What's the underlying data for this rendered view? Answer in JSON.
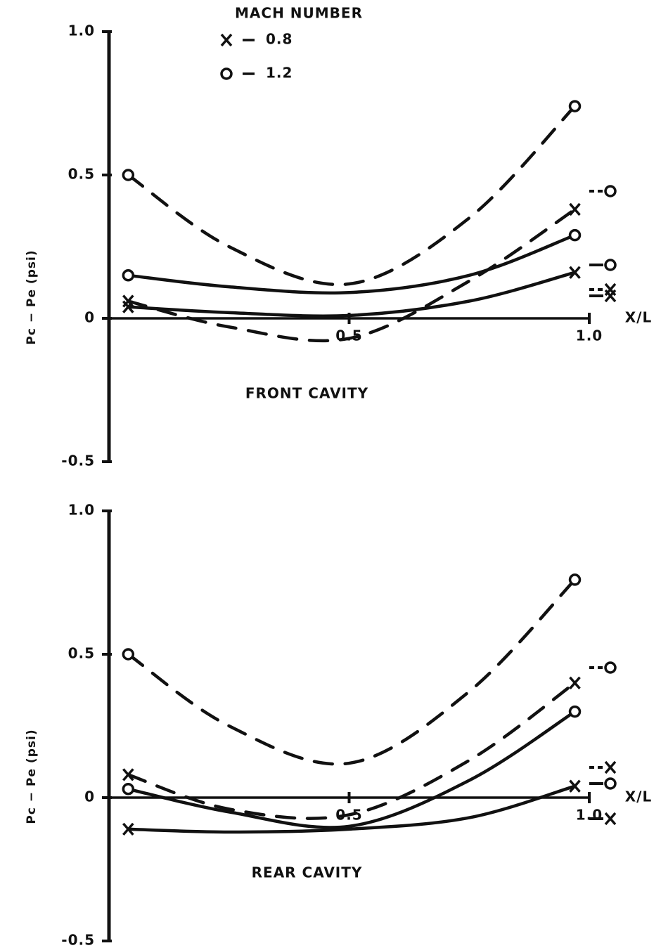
{
  "chart_data": [
    {
      "type": "line",
      "annotation": "FRONT CAVITY",
      "xlabel": "X/L",
      "ylabel": "Pc − Pe (psi)",
      "legend": {
        "title": "MACH NUMBER",
        "entries": [
          {
            "marker": "x",
            "label": "0.8"
          },
          {
            "marker": "o",
            "label": "1.2"
          }
        ]
      },
      "color": "#111111",
      "x": [
        0.04,
        0.25,
        0.5,
        0.75,
        0.97
      ],
      "xlim": [
        0,
        1
      ],
      "ylim": [
        -0.5,
        1
      ],
      "xticks": [
        0.5,
        {
          "value": 1,
          "label": "1.0"
        }
      ],
      "yticks": [
        -0.5,
        0,
        0.5,
        {
          "value": 1,
          "label": "1.0"
        }
      ],
      "series": [
        {
          "marker": "o",
          "dash": true,
          "values": [
            0.5,
            0.25,
            0.12,
            0.35,
            0.74
          ]
        },
        {
          "marker": "o",
          "dash": false,
          "values": [
            0.15,
            0.11,
            0.09,
            0.15,
            0.29
          ]
        },
        {
          "marker": "x",
          "dash": true,
          "values": [
            0.06,
            -0.03,
            -0.07,
            0.13,
            0.38
          ]
        },
        {
          "marker": "x",
          "dash": false,
          "values": [
            0.04,
            0.02,
            0.01,
            0.06,
            0.16
          ]
        }
      ]
    },
    {
      "type": "line",
      "annotation": "REAR CAVITY",
      "xlabel": "X/L",
      "ylabel": "Pc − Pe (psi)",
      "color": "#111111",
      "x": [
        0.04,
        0.25,
        0.5,
        0.75,
        0.97
      ],
      "xlim": [
        0,
        1
      ],
      "ylim": [
        -0.5,
        1
      ],
      "xticks": [
        0.5,
        {
          "value": 1,
          "label": "1.0"
        }
      ],
      "yticks": [
        -0.5,
        0,
        0.5,
        {
          "value": 1,
          "label": "1.0"
        }
      ],
      "series": [
        {
          "marker": "o",
          "dash": true,
          "values": [
            0.5,
            0.25,
            0.12,
            0.37,
            0.76
          ]
        },
        {
          "marker": "x",
          "dash": true,
          "values": [
            0.08,
            -0.04,
            -0.06,
            0.13,
            0.4
          ]
        },
        {
          "marker": "o",
          "dash": false,
          "values": [
            0.03,
            -0.05,
            -0.1,
            0.06,
            0.3
          ]
        },
        {
          "marker": "x",
          "dash": false,
          "values": [
            -0.11,
            -0.12,
            -0.11,
            -0.07,
            0.04
          ]
        }
      ]
    }
  ]
}
